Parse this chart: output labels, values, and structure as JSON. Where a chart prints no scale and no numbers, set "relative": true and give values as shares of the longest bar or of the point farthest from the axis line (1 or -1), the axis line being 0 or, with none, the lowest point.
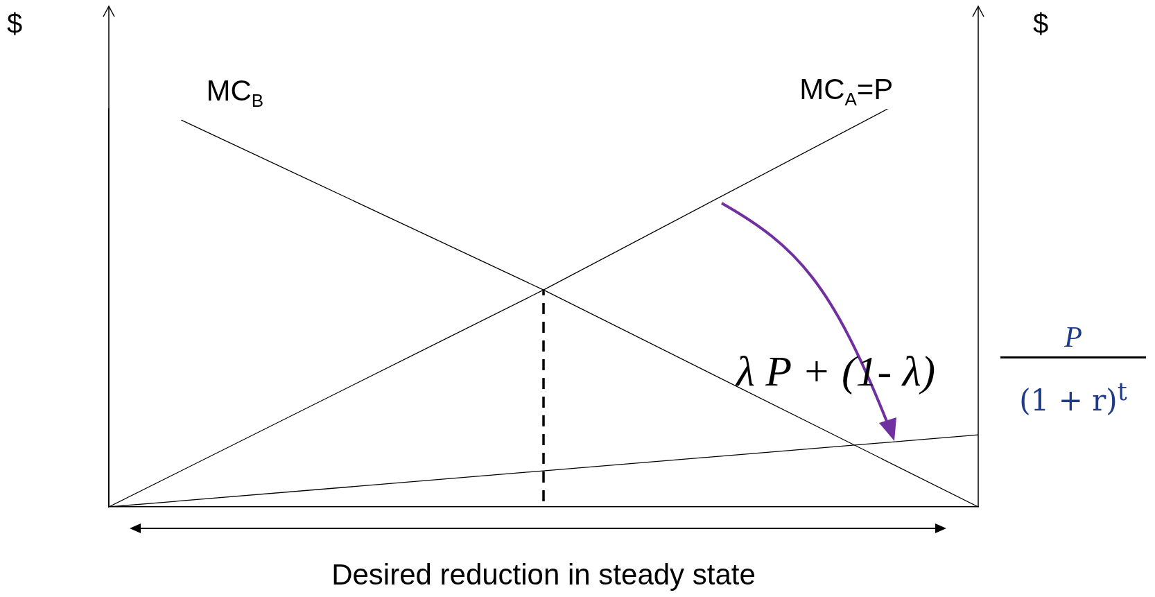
{
  "chart_data": {
    "type": "line",
    "relative": true,
    "legend": false,
    "marker": "none",
    "xlabel": "Desired reduction in steady state",
    "annotations": [
      "$",
      "$",
      "λ P + (1- λ)",
      "P",
      "(1 + r)$^{t}$"
    ],
    "categories": [
      null,
      null,
      null,
      null,
      null,
      null,
      null,
      null,
      null,
      null,
      null,
      null,
      null,
      null,
      null,
      null,
      null,
      null,
      null,
      null,
      null,
      null,
      null,
      null,
      null,
      null,
      null,
      null,
      null,
      null,
      null,
      null,
      null,
      null,
      null,
      null,
      null,
      null,
      null,
      null,
      null,
      null,
      null,
      null,
      null,
      null,
      null,
      null,
      null
    ],
    "series": [
      {
        "name": "MC$_{B}$",
        "color": "#000000",
        "values": [
          null,
          null,
          null,
          null,
          0.972,
          null,
          null,
          null,
          null,
          null,
          null,
          null,
          null,
          null,
          null,
          null,
          null,
          null,
          null,
          null,
          null,
          null,
          null,
          null,
          0.545,
          null,
          null,
          null,
          null,
          null,
          null,
          null,
          null,
          null,
          null,
          null,
          null,
          null,
          null,
          null,
          null,
          null,
          null,
          null,
          null,
          null,
          null,
          null,
          0
        ]
      },
      {
        "name": "MC$_{A}$=P",
        "color": "#000000",
        "values": [
          0,
          null,
          null,
          null,
          null,
          null,
          null,
          null,
          null,
          null,
          null,
          null,
          null,
          null,
          null,
          null,
          null,
          null,
          null,
          null,
          null,
          null,
          null,
          null,
          0.545,
          null,
          null,
          null,
          null,
          null,
          null,
          null,
          null,
          null,
          null,
          null,
          null,
          null,
          null,
          null,
          null,
          null,
          null,
          1,
          null,
          null,
          null,
          null,
          null
        ]
      },
      {
        "color": "#000000",
        "values": [
          0,
          null,
          null,
          null,
          null,
          null,
          null,
          null,
          null,
          null,
          null,
          null,
          null,
          null,
          null,
          null,
          null,
          null,
          null,
          null,
          null,
          null,
          null,
          null,
          null,
          null,
          null,
          null,
          null,
          null,
          null,
          null,
          null,
          null,
          null,
          null,
          null,
          null,
          null,
          null,
          null,
          null,
          null,
          null,
          null,
          null,
          null,
          null,
          0.181
        ]
      }
    ]
  }
}
